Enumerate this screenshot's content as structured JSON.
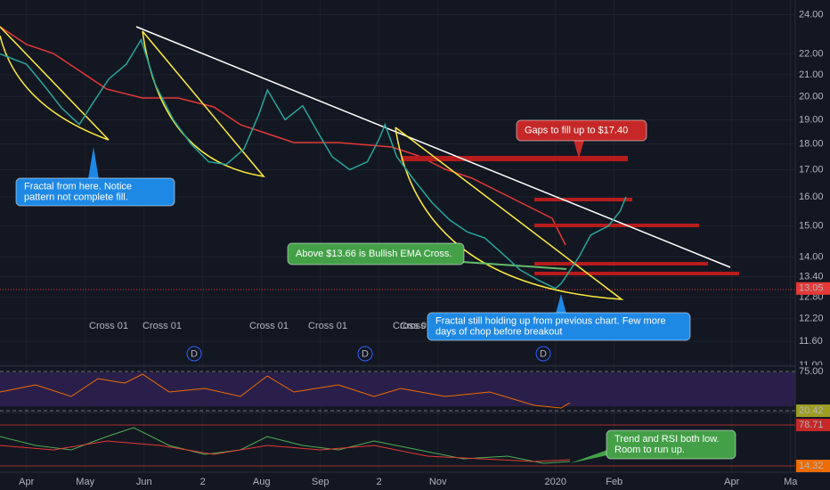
{
  "chart_data": {
    "type": "line",
    "x": [
      -0.45,
      0,
      0.3,
      0.6,
      0.9,
      1.1,
      1.4,
      1.7,
      1.95,
      2.2,
      2.5,
      2.8,
      3.1,
      3.4,
      3.7,
      3.95,
      4.1,
      4.4,
      4.7,
      4.95,
      5.2,
      5.5,
      5.8,
      6.0,
      6.1,
      6.3,
      6.6,
      6.9,
      7.2,
      7.5,
      7.8,
      8.1,
      8.4,
      8.7,
      9.0,
      9.1,
      9.4,
      9.6,
      9.9,
      10.1,
      10.2
    ],
    "values": [
      22.0,
      21.5,
      20.5,
      19.5,
      18.8,
      19.6,
      20.8,
      21.5,
      22.7,
      20.5,
      19.0,
      18.0,
      17.3,
      17.2,
      17.8,
      19.2,
      20.3,
      19.0,
      19.6,
      18.5,
      17.5,
      17.0,
      17.3,
      18.2,
      18.8,
      17.5,
      16.6,
      15.8,
      15.2,
      14.8,
      14.6,
      14.1,
      13.6,
      13.3,
      13.05,
      13.2,
      14.0,
      14.7,
      15.0,
      15.5,
      16.0
    ],
    "color": "#26a69a",
    "log_scale": true,
    "grid": true,
    "xlim": [
      -0.45,
      13.08
    ],
    "xticks": [
      {
        "value": 0,
        "label": "Apr"
      },
      {
        "value": 1,
        "label": "May"
      },
      {
        "value": 2,
        "label": "Jun"
      },
      {
        "value": 3,
        "label": "2"
      },
      {
        "value": 4,
        "label": "Aug"
      },
      {
        "value": 5,
        "label": "Sep"
      },
      {
        "value": 6,
        "label": "2"
      },
      {
        "value": 7,
        "label": "Nov"
      },
      {
        "value": 9,
        "label": "2020"
      },
      {
        "value": 10,
        "label": "Feb"
      },
      {
        "value": 12,
        "label": "Apr"
      },
      {
        "value": 13,
        "label": "Ma"
      }
    ],
    "ylim": [
      11.0,
      24.8
    ],
    "yticks": [
      {
        "value": 24,
        "label": "24.00"
      },
      {
        "value": 22,
        "label": "22.00"
      },
      {
        "value": 21,
        "label": "21.00"
      },
      {
        "value": 20,
        "label": "20.00"
      },
      {
        "value": 19,
        "label": "19.00"
      },
      {
        "value": 18,
        "label": "18.00"
      },
      {
        "value": 17,
        "label": "17.00"
      },
      {
        "value": 16,
        "label": "16.00"
      },
      {
        "value": 15,
        "label": "15.00"
      },
      {
        "value": 14,
        "label": "14.00"
      },
      {
        "value": 13.4,
        "label": "13.40"
      },
      {
        "value": 12.8,
        "label": "12.80"
      },
      {
        "value": 12.2,
        "label": "12.20"
      },
      {
        "value": 11.6,
        "label": "11.60"
      },
      {
        "value": 11,
        "label": "11.00"
      }
    ],
    "last_price": 13.05,
    "annotations": [
      {
        "lines": [
          "Fractal from here.  Notice",
          "pattern not complete fill."
        ],
        "color": "#1e88e5"
      },
      {
        "lines": [
          "Gaps to fill up to $17.40"
        ],
        "color": "#c62828"
      },
      {
        "lines": [
          "Above $13.66 is Bullish EMA Cross."
        ],
        "color": "#43a047"
      },
      {
        "lines": [
          "Fractal still holding up from previous chart. Few more",
          "days of chop before breakout"
        ],
        "color": "#1e88e5"
      },
      {
        "lines": [
          "Trend and RSI both low.",
          "Room to run up."
        ],
        "color": "#43a047"
      }
    ],
    "cross_labels": [
      {
        "text": "Cross 01",
        "color": "#2e7d32"
      },
      {
        "text": "Cross 01",
        "color": "#c62828"
      },
      {
        "text": "Cross 01",
        "color": "#2e7d32"
      },
      {
        "text": "Cross 01",
        "color": "#c62828"
      },
      {
        "text": "Cross 01",
        "color": "#2e7d32"
      },
      {
        "text": "Cross 01",
        "color": "#c62828"
      }
    ],
    "markers": [
      "D",
      "D",
      "D"
    ],
    "indicators": [
      {
        "ylim": [
          19.2,
          80
        ],
        "ticks": [
          {
            "value": 75,
            "label": "75.00"
          },
          {
            "value": 20.42,
            "label": "20.42"
          }
        ],
        "tick_colors": [
          "#131722",
          "#9e9d24"
        ]
      },
      {
        "ylim": [
          4.5,
          96.9
        ],
        "ticks": [
          {
            "value": 78.71,
            "label": "78.71"
          },
          {
            "value": 14.32,
            "label": "14.32"
          }
        ],
        "tick_colors": [
          "#c62828",
          "#ef6c00"
        ]
      }
    ]
  }
}
